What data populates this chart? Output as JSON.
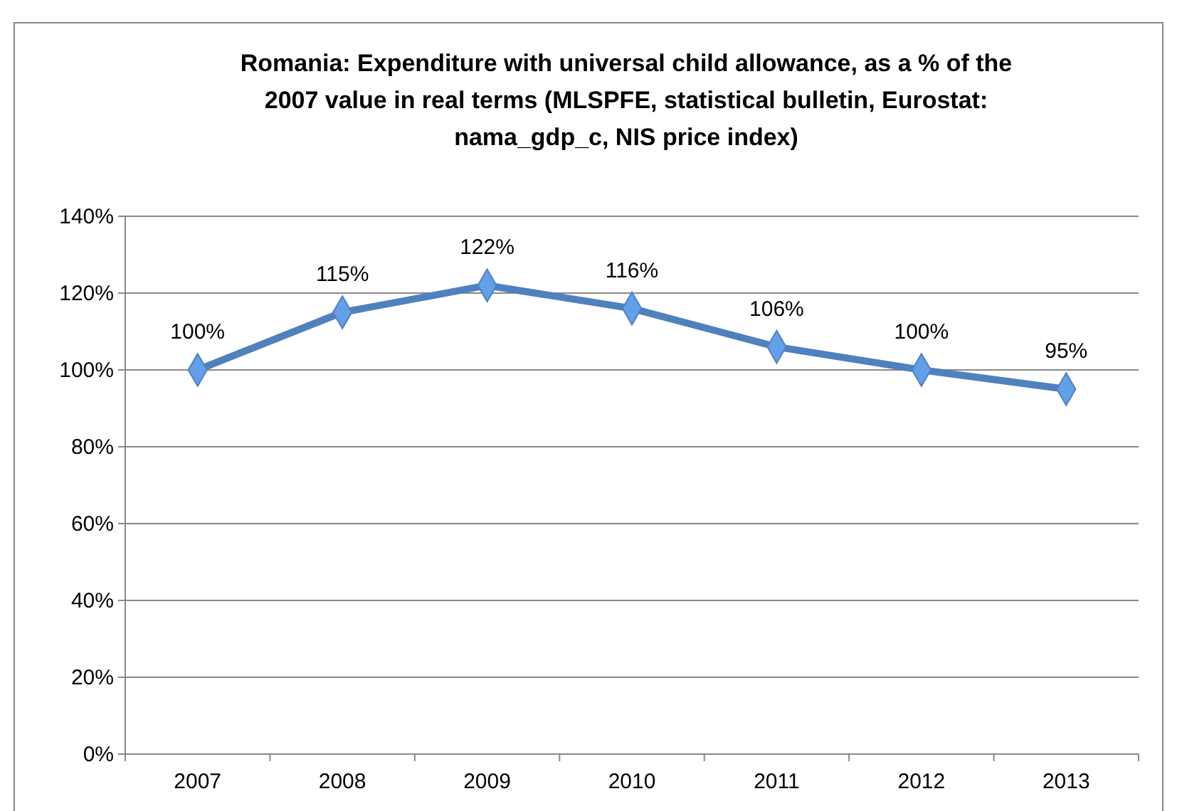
{
  "chart_data": {
    "type": "line",
    "title": "Romania: Expenditure with universal child allowance, as a % of the 2007 value in real terms (MLSPFE, statistical bulletin, Eurostat: nama_gdp_c, NIS price index)",
    "categories": [
      "2007",
      "2008",
      "2009",
      "2010",
      "2011",
      "2012",
      "2013"
    ],
    "series": [
      {
        "color": "#4f81bd",
        "values": [
          100,
          115,
          122,
          116,
          106,
          100,
          95
        ],
        "value_labels": [
          "100%",
          "115%",
          "122%",
          "116%",
          "106%",
          "100%",
          "95%"
        ]
      }
    ],
    "ylim": [
      0,
      140
    ],
    "yticks": [
      {
        "value": 0,
        "label": "0%"
      },
      {
        "value": 20,
        "label": "20%"
      },
      {
        "value": 40,
        "label": "40%"
      },
      {
        "value": 60,
        "label": "60%"
      },
      {
        "value": 80,
        "label": "80%"
      },
      {
        "value": 100,
        "label": "100%"
      },
      {
        "value": 120,
        "label": "120%"
      },
      {
        "value": 140,
        "label": "140%"
      }
    ],
    "grid": "y",
    "marker": "diamond",
    "line_style": "solid"
  }
}
